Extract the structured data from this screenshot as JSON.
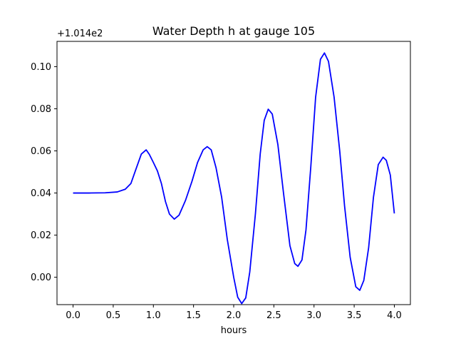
{
  "chart_data": {
    "type": "line",
    "title": "Water Depth h at gauge 105",
    "xlabel": "hours",
    "ylabel": "",
    "y_offset_label": "+1.014e2",
    "xlim": [
      -0.2,
      4.2
    ],
    "ylim": [
      -0.013,
      0.112
    ],
    "x_ticks": [
      0.0,
      0.5,
      1.0,
      1.5,
      2.0,
      2.5,
      3.0,
      3.5,
      4.0
    ],
    "x_tick_labels": [
      "0.0",
      "0.5",
      "1.0",
      "1.5",
      "2.0",
      "2.5",
      "3.0",
      "3.5",
      "4.0"
    ],
    "y_ticks": [
      0.0,
      0.02,
      0.04,
      0.06,
      0.08,
      0.1
    ],
    "y_tick_labels": [
      "0.00",
      "0.02",
      "0.04",
      "0.06",
      "0.08",
      "0.10"
    ],
    "grid": false,
    "series": [
      {
        "color": "#0000ff",
        "x": [
          0.0,
          0.2,
          0.4,
          0.55,
          0.65,
          0.72,
          0.78,
          0.85,
          0.91,
          0.95,
          1.0,
          1.05,
          1.1,
          1.15,
          1.2,
          1.26,
          1.32,
          1.4,
          1.48,
          1.55,
          1.62,
          1.67,
          1.72,
          1.78,
          1.85,
          1.92,
          2.0,
          2.05,
          2.1,
          2.15,
          2.2,
          2.27,
          2.33,
          2.38,
          2.43,
          2.48,
          2.55,
          2.62,
          2.7,
          2.76,
          2.8,
          2.85,
          2.9,
          2.96,
          3.02,
          3.08,
          3.13,
          3.18,
          3.25,
          3.32,
          3.38,
          3.45,
          3.52,
          3.57,
          3.62,
          3.68,
          3.74,
          3.8,
          3.86,
          3.9,
          3.95,
          4.0
        ],
        "y": [
          0.04,
          0.04,
          0.0401,
          0.0405,
          0.0418,
          0.0445,
          0.051,
          0.0585,
          0.0605,
          0.0583,
          0.0545,
          0.0505,
          0.0445,
          0.036,
          0.03,
          0.0276,
          0.0295,
          0.0365,
          0.0455,
          0.0545,
          0.0605,
          0.062,
          0.0605,
          0.052,
          0.038,
          0.018,
          0.0,
          -0.0095,
          -0.0125,
          -0.0098,
          0.0025,
          0.03,
          0.0585,
          0.0745,
          0.0798,
          0.0775,
          0.063,
          0.04,
          0.015,
          0.0065,
          0.0052,
          0.0082,
          0.0225,
          0.0525,
          0.0855,
          0.1035,
          0.1065,
          0.1025,
          0.0855,
          0.06,
          0.034,
          0.0095,
          -0.0045,
          -0.0062,
          -0.0015,
          0.014,
          0.038,
          0.0535,
          0.057,
          0.0555,
          0.0485,
          0.0303
        ]
      }
    ]
  }
}
